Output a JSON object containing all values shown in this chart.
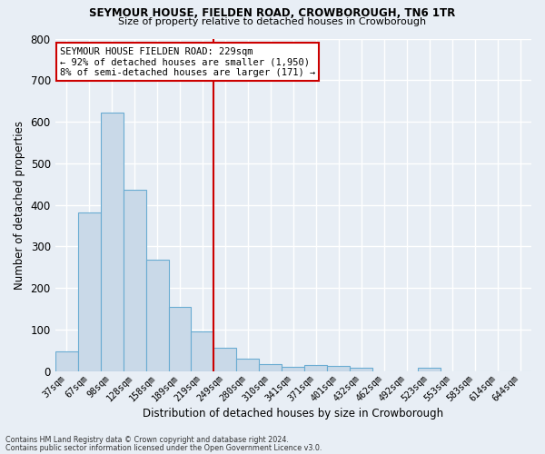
{
  "title": "SEYMOUR HOUSE, FIELDEN ROAD, CROWBOROUGH, TN6 1TR",
  "subtitle": "Size of property relative to detached houses in Crowborough",
  "xlabel": "Distribution of detached houses by size in Crowborough",
  "ylabel": "Number of detached properties",
  "footnote1": "Contains HM Land Registry data © Crown copyright and database right 2024.",
  "footnote2": "Contains public sector information licensed under the Open Government Licence v3.0.",
  "bar_labels": [
    "37sqm",
    "67sqm",
    "98sqm",
    "128sqm",
    "158sqm",
    "189sqm",
    "219sqm",
    "249sqm",
    "280sqm",
    "310sqm",
    "341sqm",
    "371sqm",
    "401sqm",
    "432sqm",
    "462sqm",
    "492sqm",
    "523sqm",
    "553sqm",
    "583sqm",
    "614sqm",
    "644sqm"
  ],
  "bar_values": [
    48,
    382,
    622,
    437,
    268,
    154,
    96,
    56,
    30,
    17,
    11,
    14,
    13,
    8,
    0,
    0,
    8,
    0,
    0,
    0,
    0
  ],
  "bar_color": "#c9d9e8",
  "bar_edge_color": "#6aacd2",
  "annotation_line_color": "#cc0000",
  "annotation_box_text": "SEYMOUR HOUSE FIELDEN ROAD: 229sqm\n← 92% of detached houses are smaller (1,950)\n8% of semi-detached houses are larger (171) →",
  "annotation_box_edge_color": "#cc0000",
  "ylim": [
    0,
    800
  ],
  "yticks": [
    0,
    100,
    200,
    300,
    400,
    500,
    600,
    700,
    800
  ],
  "bg_color": "#e8eef5",
  "plot_bg_color": "#e8eef5",
  "grid_color": "#ffffff"
}
